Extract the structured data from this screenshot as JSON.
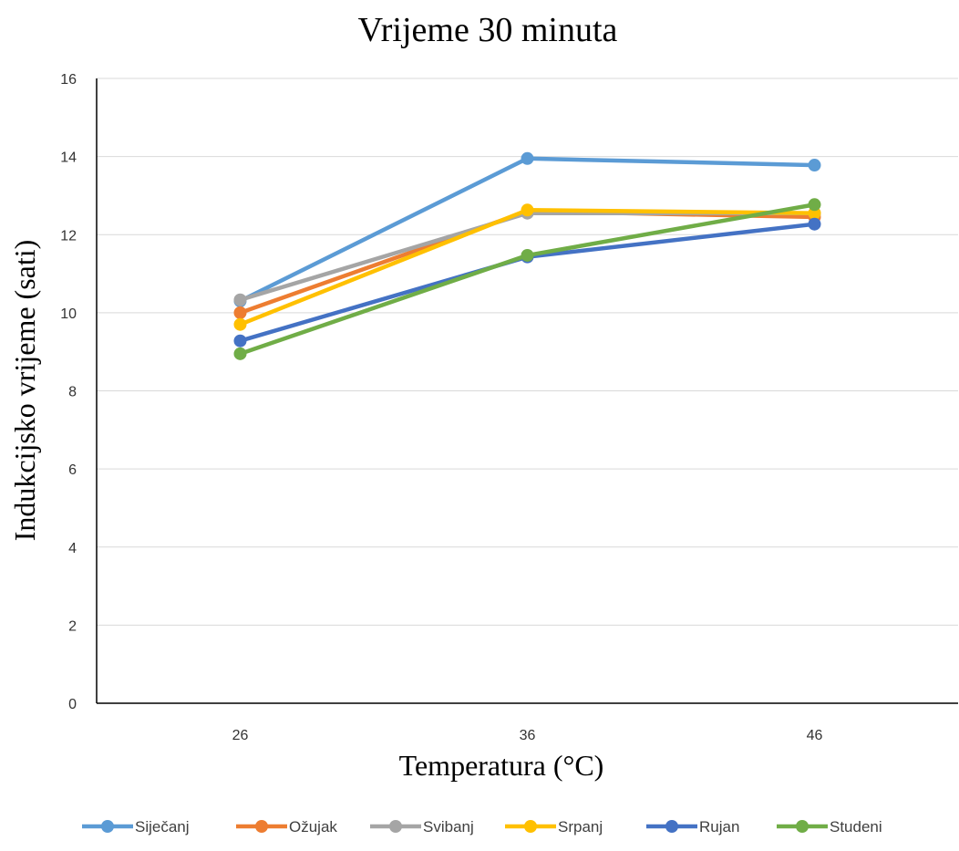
{
  "chart_data": {
    "type": "line",
    "title": "Vrijeme 30 minuta",
    "xlabel": "Temperatura (°C)",
    "ylabel": "Indukcijsko vrijeme (sati)",
    "categories": [
      "26",
      "36",
      "46"
    ],
    "ylim": [
      0,
      16
    ],
    "yticks": [
      0,
      2,
      4,
      6,
      8,
      10,
      12,
      14,
      16
    ],
    "grid": true,
    "legend_position": "bottom",
    "series": [
      {
        "name": "Siječanj",
        "color": "#5b9bd5",
        "values": [
          10.3,
          13.95,
          13.78
        ]
      },
      {
        "name": "Ožujak",
        "color": "#ed7d31",
        "values": [
          10.0,
          12.6,
          12.45
        ]
      },
      {
        "name": "Svibanj",
        "color": "#a5a5a5",
        "values": [
          10.33,
          12.55,
          12.55
        ]
      },
      {
        "name": "Srpanj",
        "color": "#ffc000",
        "values": [
          9.7,
          12.63,
          12.55
        ]
      },
      {
        "name": "Rujan",
        "color": "#4472c4",
        "values": [
          9.28,
          11.43,
          12.27
        ]
      },
      {
        "name": "Studeni",
        "color": "#70ad47",
        "values": [
          8.95,
          11.47,
          12.77
        ]
      }
    ]
  }
}
